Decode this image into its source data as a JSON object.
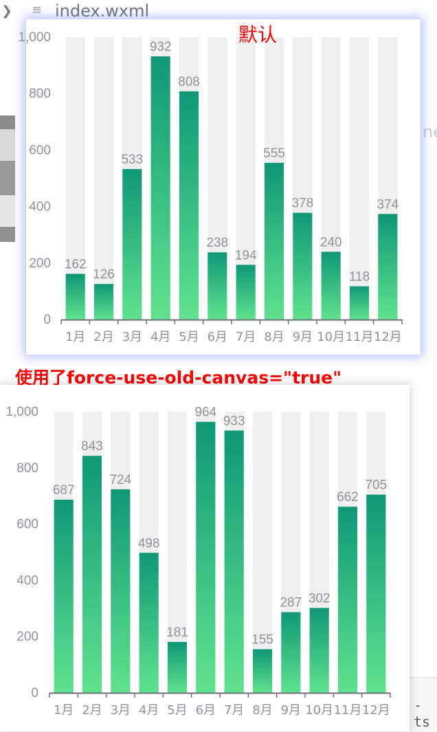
{
  "editor": {
    "file_name": "index.wxml",
    "right_fragment": "ne",
    "bottom_fragment": "- ts"
  },
  "captions": {
    "top": "默认",
    "bottom": "使用了force-use-old-canvas=\"true\""
  },
  "colors": {
    "bar_top": "#109776",
    "bar_bottom": "#5fe28e",
    "bar_background": "#efefef",
    "axis_label": "#909399",
    "axis_line": "#6e7079",
    "caption": "#ff0000"
  },
  "chart_data": [
    {
      "type": "bar",
      "categories": [
        "1月",
        "2月",
        "3月",
        "4月",
        "5月",
        "6月",
        "7月",
        "8月",
        "9月",
        "10月",
        "11月",
        "12月"
      ],
      "values": [
        162,
        126,
        533,
        932,
        808,
        238,
        194,
        555,
        378,
        240,
        118,
        374
      ],
      "ylim": [
        0,
        1000
      ],
      "yticks": [
        "0",
        "200",
        "400",
        "600",
        "800",
        "1,000"
      ],
      "show_background_bars": true,
      "data_labels": true,
      "grid": false
    },
    {
      "type": "bar",
      "categories": [
        "1月",
        "2月",
        "3月",
        "4月",
        "5月",
        "6月",
        "7月",
        "8月",
        "9月",
        "10月",
        "11月",
        "12月"
      ],
      "values": [
        687,
        843,
        724,
        498,
        181,
        964,
        933,
        155,
        287,
        302,
        662,
        705
      ],
      "ylim": [
        0,
        1000
      ],
      "yticks": [
        "0",
        "200",
        "400",
        "600",
        "800",
        "1,000"
      ],
      "show_background_bars": true,
      "data_labels": true,
      "grid": false
    }
  ]
}
